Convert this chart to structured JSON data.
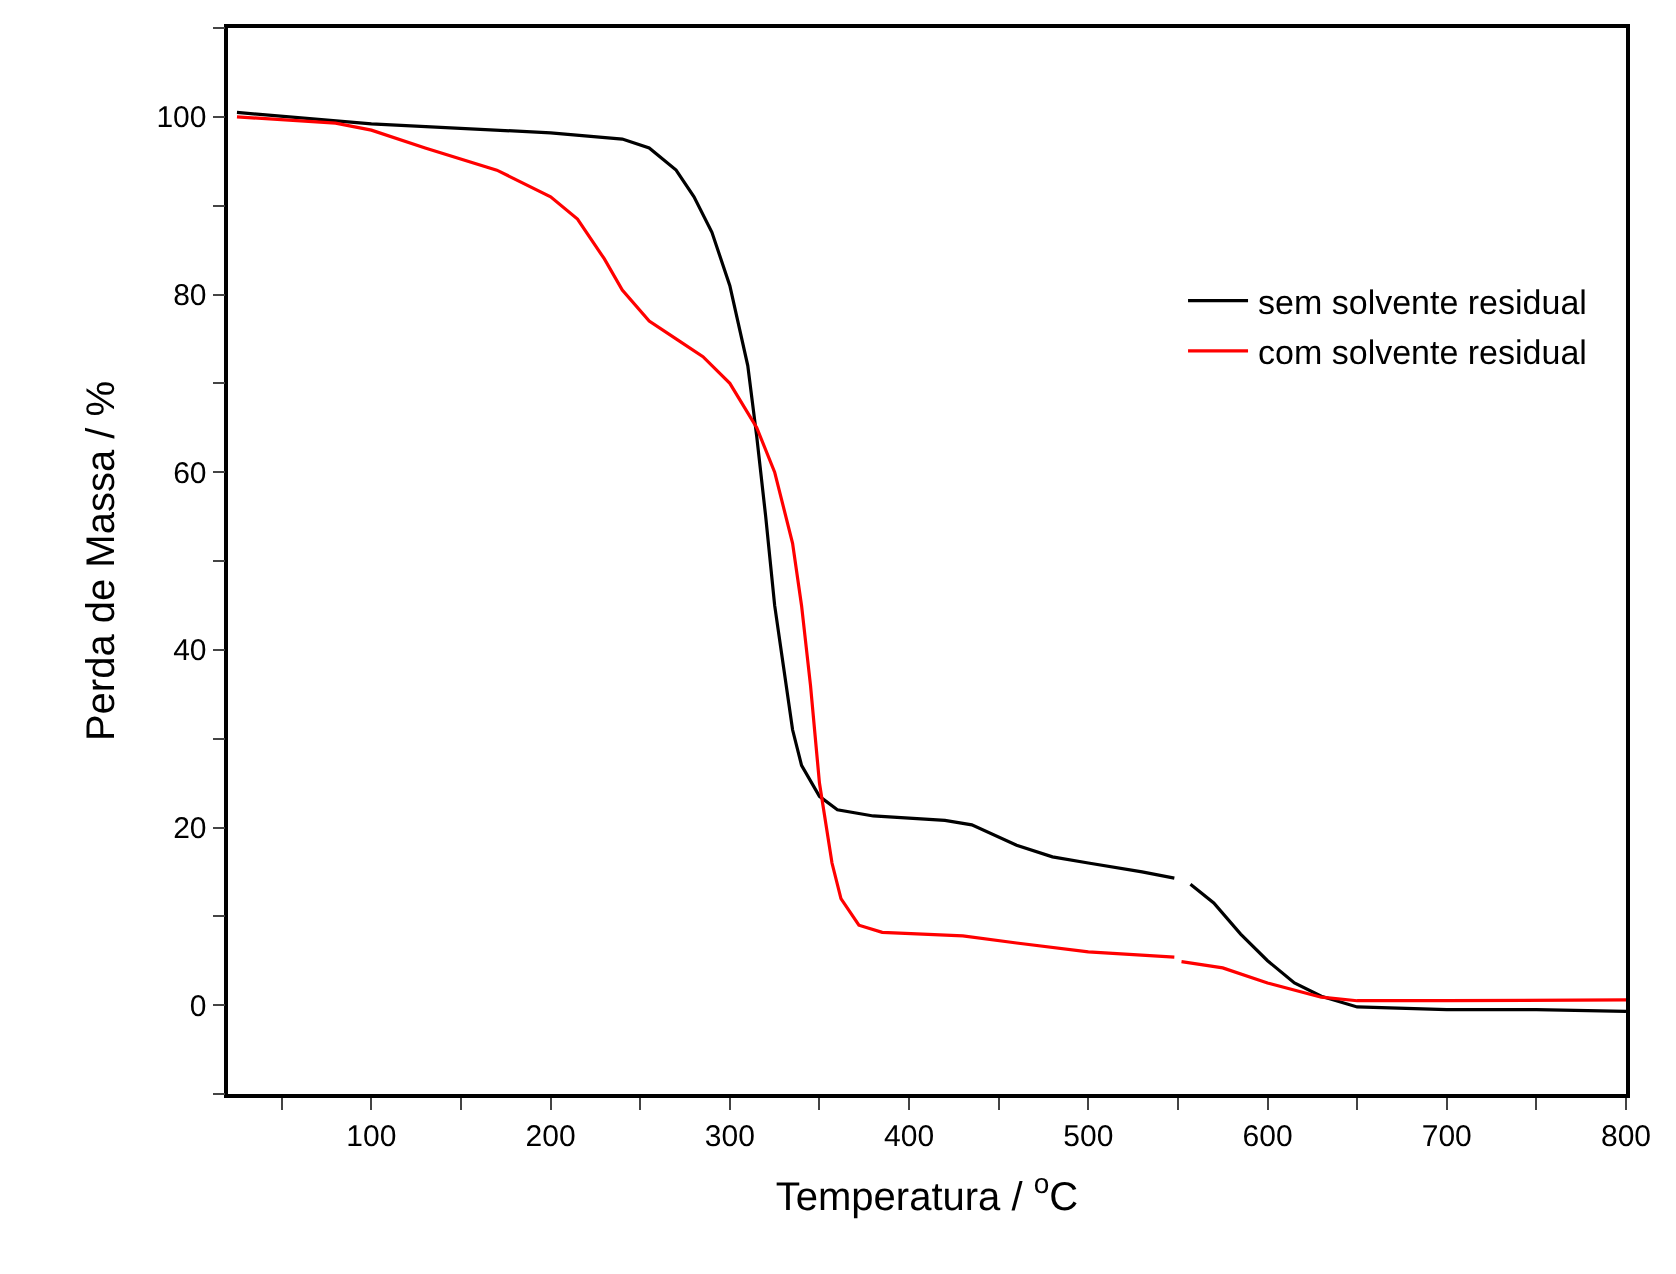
{
  "chart_data": {
    "type": "line",
    "xlabel": "Temperatura / $^{o}$C",
    "ylabel": "Perda de Massa / %",
    "xlim": [
      20,
      800
    ],
    "ylim": [
      -10,
      110
    ],
    "xticks": [
      {
        "value": 50,
        "label": null
      },
      100,
      {
        "value": 150,
        "label": null
      },
      200,
      {
        "value": 250,
        "label": null
      },
      300,
      {
        "value": 350,
        "label": null
      },
      400,
      {
        "value": 450,
        "label": null
      },
      500,
      {
        "value": 550,
        "label": null
      },
      600,
      {
        "value": 650,
        "label": null
      },
      700,
      {
        "value": 750,
        "label": null
      },
      800
    ],
    "yticks": [
      {
        "value": -10,
        "label": null
      },
      0,
      {
        "value": 10,
        "label": null
      },
      20,
      {
        "value": 30,
        "label": null
      },
      40,
      {
        "value": 50,
        "label": null
      },
      60,
      {
        "value": 70,
        "label": null
      },
      80,
      {
        "value": 90,
        "label": null
      },
      100,
      {
        "value": 110,
        "label": null
      }
    ],
    "legend": "right",
    "marker": "none",
    "line_style": "solid",
    "series": [
      {
        "name": "sem solvente residual",
        "color": "#000000",
        "x": [
          25,
          100,
          200,
          240,
          255,
          270,
          280,
          290,
          300,
          310,
          315,
          320,
          325,
          330,
          335,
          340,
          350,
          360,
          380,
          420,
          435,
          460,
          480,
          500,
          530,
          548,
          552,
          557,
          570,
          585,
          600,
          615,
          630,
          650,
          700,
          750,
          800
        ],
        "values": [
          100.5,
          99.2,
          98.2,
          97.5,
          96.5,
          94,
          91,
          87,
          81,
          72,
          64,
          55,
          45,
          38,
          31,
          27,
          23.5,
          22,
          21.3,
          20.8,
          20.3,
          18,
          16.7,
          16,
          15,
          14.3,
          null,
          13.6,
          11.5,
          8,
          5,
          2.5,
          1,
          -0.2,
          -0.5,
          -0.5,
          -0.7
        ]
      },
      {
        "name": "com solvente residual",
        "color": "#ff0000",
        "x": [
          25,
          80,
          100,
          130,
          170,
          200,
          215,
          230,
          240,
          255,
          270,
          285,
          300,
          315,
          325,
          335,
          340,
          345,
          350,
          357,
          362,
          372,
          385,
          430,
          460,
          500,
          548,
          550,
          552,
          575,
          600,
          630,
          650,
          700,
          800
        ],
        "values": [
          100,
          99.3,
          98.5,
          96.5,
          94,
          91,
          88.5,
          84,
          80.5,
          77,
          75,
          73,
          70,
          65,
          60,
          52,
          45,
          36,
          25,
          16,
          12,
          9,
          8.2,
          7.8,
          7,
          6,
          5.4,
          null,
          4.9,
          4.2,
          2.5,
          0.9,
          0.5,
          0.5,
          0.6
        ]
      }
    ]
  }
}
